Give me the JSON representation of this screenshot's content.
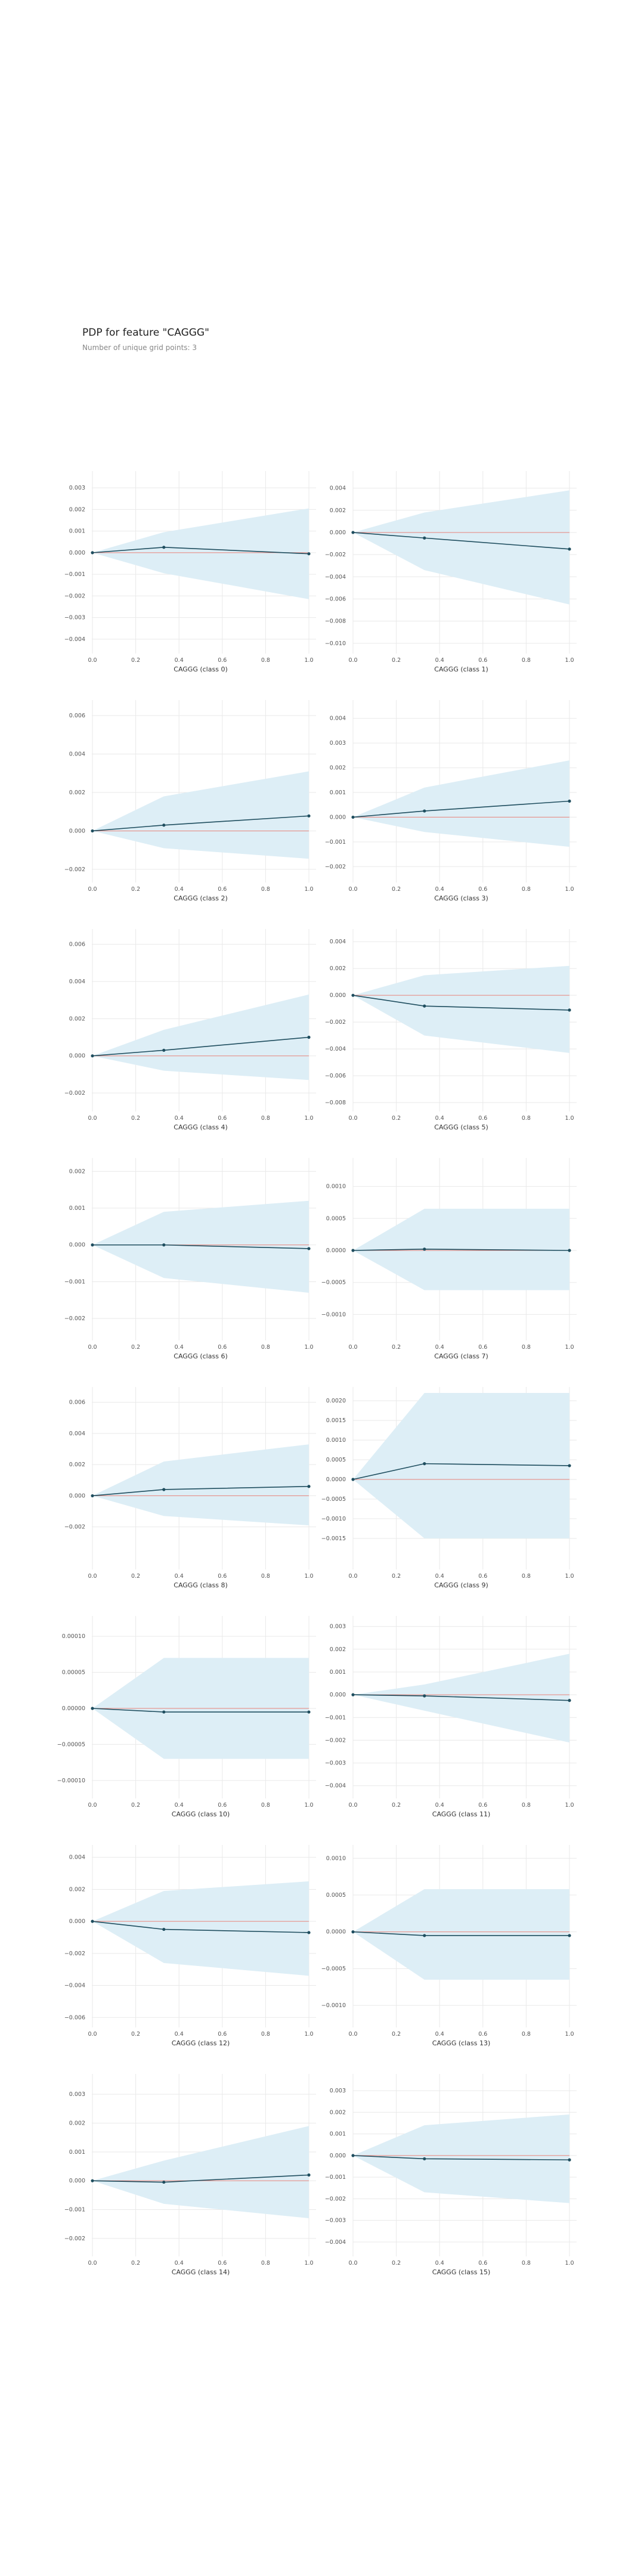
{
  "title": "PDP for feature \"CAGGG\"",
  "subtitle": "Number of unique grid points: 3",
  "colors": {
    "band": "#ddeef6",
    "line": "#1f4e5f",
    "zero_line": "#e8837a",
    "grid": "#e9e9e9",
    "tick_text": "#555555"
  },
  "chart_data": [
    {
      "type": "line",
      "xlabel": "CAGGG (class 0)",
      "x": [
        0,
        0.33,
        1
      ],
      "y": [
        0,
        0.00025,
        -5e-05
      ],
      "upper": [
        0,
        0.00095,
        0.00205
      ],
      "lower": [
        0,
        -0.00095,
        -0.00215
      ],
      "ylim": [
        -0.0045,
        0.0035
      ],
      "yticks": [
        0.003,
        0.002,
        0.001,
        0,
        -0.001,
        -0.002,
        -0.003,
        -0.004
      ],
      "yticklabels": [
        "0.003",
        "0.002",
        "0.001",
        "0.000",
        "−0.001",
        "−0.002",
        "−0.003",
        "−0.004"
      ]
    },
    {
      "type": "line",
      "xlabel": "CAGGG (class 1)",
      "x": [
        0,
        0.33,
        1
      ],
      "y": [
        0,
        -0.0005,
        -0.0015
      ],
      "upper": [
        0,
        0.0018,
        0.0038
      ],
      "lower": [
        0,
        -0.0034,
        -0.0065
      ],
      "ylim": [
        -0.0106,
        0.005
      ],
      "yticks": [
        0.004,
        0.002,
        0,
        -0.002,
        -0.004,
        -0.006,
        -0.008,
        -0.01
      ],
      "yticklabels": [
        "0.004",
        "0.002",
        "0.000",
        "−0.002",
        "−0.004",
        "−0.006",
        "−0.008",
        "−0.010"
      ]
    },
    {
      "type": "line",
      "xlabel": "CAGGG (class 2)",
      "x": [
        0,
        0.33,
        1
      ],
      "y": [
        0,
        0.0003,
        0.00078
      ],
      "upper": [
        0,
        0.0018,
        0.0031
      ],
      "lower": [
        0,
        -0.0009,
        -0.00145
      ],
      "ylim": [
        -0.0025,
        0.0065
      ],
      "yticks": [
        0.006,
        0.004,
        0.002,
        0,
        -0.002
      ],
      "yticklabels": [
        "0.006",
        "0.004",
        "0.002",
        "0.000",
        "−0.002"
      ]
    },
    {
      "type": "line",
      "xlabel": "CAGGG (class 3)",
      "x": [
        0,
        0.33,
        1
      ],
      "y": [
        0,
        0.00025,
        0.00065
      ],
      "upper": [
        0,
        0.0012,
        0.0023
      ],
      "lower": [
        0,
        -0.0006,
        -0.0012
      ],
      "ylim": [
        -0.0025,
        0.0045
      ],
      "yticks": [
        0.004,
        0.003,
        0.002,
        0.001,
        0,
        -0.001,
        -0.002
      ],
      "yticklabels": [
        "0.004",
        "0.003",
        "0.002",
        "0.001",
        "0.000",
        "−0.001",
        "−0.002"
      ]
    },
    {
      "type": "line",
      "xlabel": "CAGGG (class 4)",
      "x": [
        0,
        0.33,
        1
      ],
      "y": [
        0,
        0.0003,
        0.001
      ],
      "upper": [
        0,
        0.0014,
        0.0033
      ],
      "lower": [
        0,
        -0.0008,
        -0.0013
      ],
      "ylim": [
        -0.0028,
        0.0065
      ],
      "yticks": [
        0.006,
        0.004,
        0.002,
        0,
        -0.002
      ],
      "yticklabels": [
        "0.006",
        "0.004",
        "0.002",
        "0.000",
        "−0.002"
      ]
    },
    {
      "type": "line",
      "xlabel": "CAGGG (class 5)",
      "x": [
        0,
        0.33,
        1
      ],
      "y": [
        0,
        -0.0008,
        -0.0011
      ],
      "upper": [
        0,
        0.0015,
        0.0022
      ],
      "lower": [
        0,
        -0.003,
        -0.0043
      ],
      "ylim": [
        -0.0084,
        0.0045
      ],
      "yticks": [
        0.004,
        0.002,
        0,
        -0.002,
        -0.004,
        -0.006,
        -0.008
      ],
      "yticklabels": [
        "0.004",
        "0.002",
        "0.000",
        "−0.002",
        "−0.004",
        "−0.006",
        "−0.008"
      ]
    },
    {
      "type": "line",
      "xlabel": "CAGGG (class 6)",
      "x": [
        0,
        0.33,
        1
      ],
      "y": [
        0,
        0,
        -0.0001
      ],
      "upper": [
        0,
        0.0009,
        0.0012
      ],
      "lower": [
        0,
        -0.0009,
        -0.0013
      ],
      "ylim": [
        -0.0025,
        0.0022
      ],
      "yticks": [
        0.002,
        0.001,
        0,
        -0.001,
        -0.002
      ],
      "yticklabels": [
        "0.002",
        "0.001",
        "0.000",
        "−0.001",
        "−0.002"
      ]
    },
    {
      "type": "line",
      "xlabel": "CAGGG (class 7)",
      "x": [
        0,
        0.33,
        1
      ],
      "y": [
        0,
        2e-05,
        0
      ],
      "upper": [
        0,
        0.00065,
        0.00065
      ],
      "lower": [
        0,
        -0.00062,
        -0.00062
      ],
      "ylim": [
        -0.00135,
        0.00135
      ],
      "yticks": [
        0.001,
        0.0005,
        0,
        -0.0005,
        -0.001
      ],
      "yticklabels": [
        "0.0010",
        "0.0005",
        "0.0000",
        "−0.0005",
        "−0.0010"
      ]
    },
    {
      "type": "line",
      "xlabel": "CAGGG (class 8)",
      "x": [
        0,
        0.33,
        1
      ],
      "y": [
        0,
        0.0004,
        0.0006
      ],
      "upper": [
        0,
        0.0022,
        0.0033
      ],
      "lower": [
        0,
        -0.0013,
        -0.0019
      ],
      "ylim": [
        -0.0045,
        0.0066
      ],
      "yticks": [
        0.006,
        0.004,
        0.002,
        0,
        -0.002
      ],
      "yticklabels": [
        "0.006",
        "0.004",
        "0.002",
        "0.000",
        "−0.002"
      ]
    },
    {
      "type": "line",
      "xlabel": "CAGGG (class 9)",
      "x": [
        0,
        0.33,
        1
      ],
      "y": [
        0,
        0.0004,
        0.00035
      ],
      "upper": [
        0,
        0.0022,
        0.0022
      ],
      "lower": [
        0,
        -0.0015,
        -0.0015
      ],
      "ylim": [
        -0.0022,
        0.0022
      ],
      "yticks": [
        0.002,
        0.0015,
        0.001,
        0.0005,
        0,
        -0.0005,
        -0.001,
        -0.0015
      ],
      "yticklabels": [
        "0.0020",
        "0.0015",
        "0.0010",
        "0.0005",
        "0.0000",
        "−0.0005",
        "−0.0010",
        "−0.0015"
      ]
    },
    {
      "type": "line",
      "xlabel": "CAGGG (class 10)",
      "x": [
        0,
        0.33,
        1
      ],
      "y": [
        0,
        -5e-06,
        -5e-06
      ],
      "upper": [
        0,
        7e-05,
        7e-05
      ],
      "lower": [
        0,
        -7e-05,
        -7e-05
      ],
      "ylim": [
        -0.00012,
        0.00012
      ],
      "yticks": [
        0.0001,
        5e-05,
        0,
        -5e-05,
        -0.0001
      ],
      "yticklabels": [
        "0.00010",
        "0.00005",
        "0.00000",
        "−0.00005",
        "−0.00010"
      ]
    },
    {
      "type": "line",
      "xlabel": "CAGGG (class 11)",
      "x": [
        0,
        0.33,
        1
      ],
      "y": [
        0,
        -5e-05,
        -0.00025
      ],
      "upper": [
        0,
        0.00045,
        0.0018
      ],
      "lower": [
        0,
        -0.0007,
        -0.0021
      ],
      "ylim": [
        -0.0044,
        0.0032
      ],
      "yticks": [
        0.003,
        0.002,
        0.001,
        0,
        -0.001,
        -0.002,
        -0.003,
        -0.004
      ],
      "yticklabels": [
        "0.003",
        "0.002",
        "0.001",
        "0.000",
        "−0.001",
        "−0.002",
        "−0.003",
        "−0.004"
      ]
    },
    {
      "type": "line",
      "xlabel": "CAGGG (class 12)",
      "x": [
        0,
        0.33,
        1
      ],
      "y": [
        0,
        -0.0005,
        -0.0007
      ],
      "upper": [
        0,
        0.0019,
        0.0025
      ],
      "lower": [
        0,
        -0.0026,
        -0.0034
      ],
      "ylim": [
        -0.0064,
        0.0044
      ],
      "yticks": [
        0.004,
        0.002,
        0,
        -0.002,
        -0.004,
        -0.006
      ],
      "yticklabels": [
        "0.004",
        "0.002",
        "0.000",
        "−0.002",
        "−0.004",
        "−0.006"
      ]
    },
    {
      "type": "line",
      "xlabel": "CAGGG (class 13)",
      "x": [
        0,
        0.33,
        1
      ],
      "y": [
        0,
        -5e-05,
        -5e-05
      ],
      "upper": [
        0,
        0.00058,
        0.00058
      ],
      "lower": [
        0,
        -0.00065,
        -0.00065
      ],
      "ylim": [
        -0.00125,
        0.0011
      ],
      "yticks": [
        0.001,
        0.0005,
        0,
        -0.0005,
        -0.001
      ],
      "yticklabels": [
        "0.0010",
        "0.0005",
        "0.0000",
        "−0.0005",
        "−0.0010"
      ]
    },
    {
      "type": "line",
      "xlabel": "CAGGG (class 14)",
      "x": [
        0,
        0.33,
        1
      ],
      "y": [
        0,
        -5e-05,
        0.0002
      ],
      "upper": [
        0,
        0.0007,
        0.0019
      ],
      "lower": [
        0,
        -0.0008,
        -0.0013
      ],
      "ylim": [
        -0.0025,
        0.0035
      ],
      "yticks": [
        0.003,
        0.002,
        0.001,
        0,
        -0.001,
        -0.002
      ],
      "yticklabels": [
        "0.003",
        "0.002",
        "0.001",
        "0.000",
        "−0.001",
        "−0.002"
      ]
    },
    {
      "type": "line",
      "xlabel": "CAGGG (class 15)",
      "x": [
        0,
        0.33,
        1
      ],
      "y": [
        0,
        -0.00015,
        -0.0002
      ],
      "upper": [
        0,
        0.0014,
        0.0019
      ],
      "lower": [
        0,
        -0.0017,
        -0.0022
      ],
      "ylim": [
        -0.0045,
        0.0035
      ],
      "yticks": [
        0.003,
        0.002,
        0.001,
        0,
        -0.001,
        -0.002,
        -0.003,
        -0.004
      ],
      "yticklabels": [
        "0.003",
        "0.002",
        "0.001",
        "0.000",
        "−0.001",
        "−0.002",
        "−0.003",
        "−0.004"
      ]
    }
  ],
  "xticks": [
    0,
    0.2,
    0.4,
    0.6,
    0.8,
    1.0
  ],
  "xticklabels": [
    "0.0",
    "0.2",
    "0.4",
    "0.6",
    "0.8",
    "1.0"
  ]
}
